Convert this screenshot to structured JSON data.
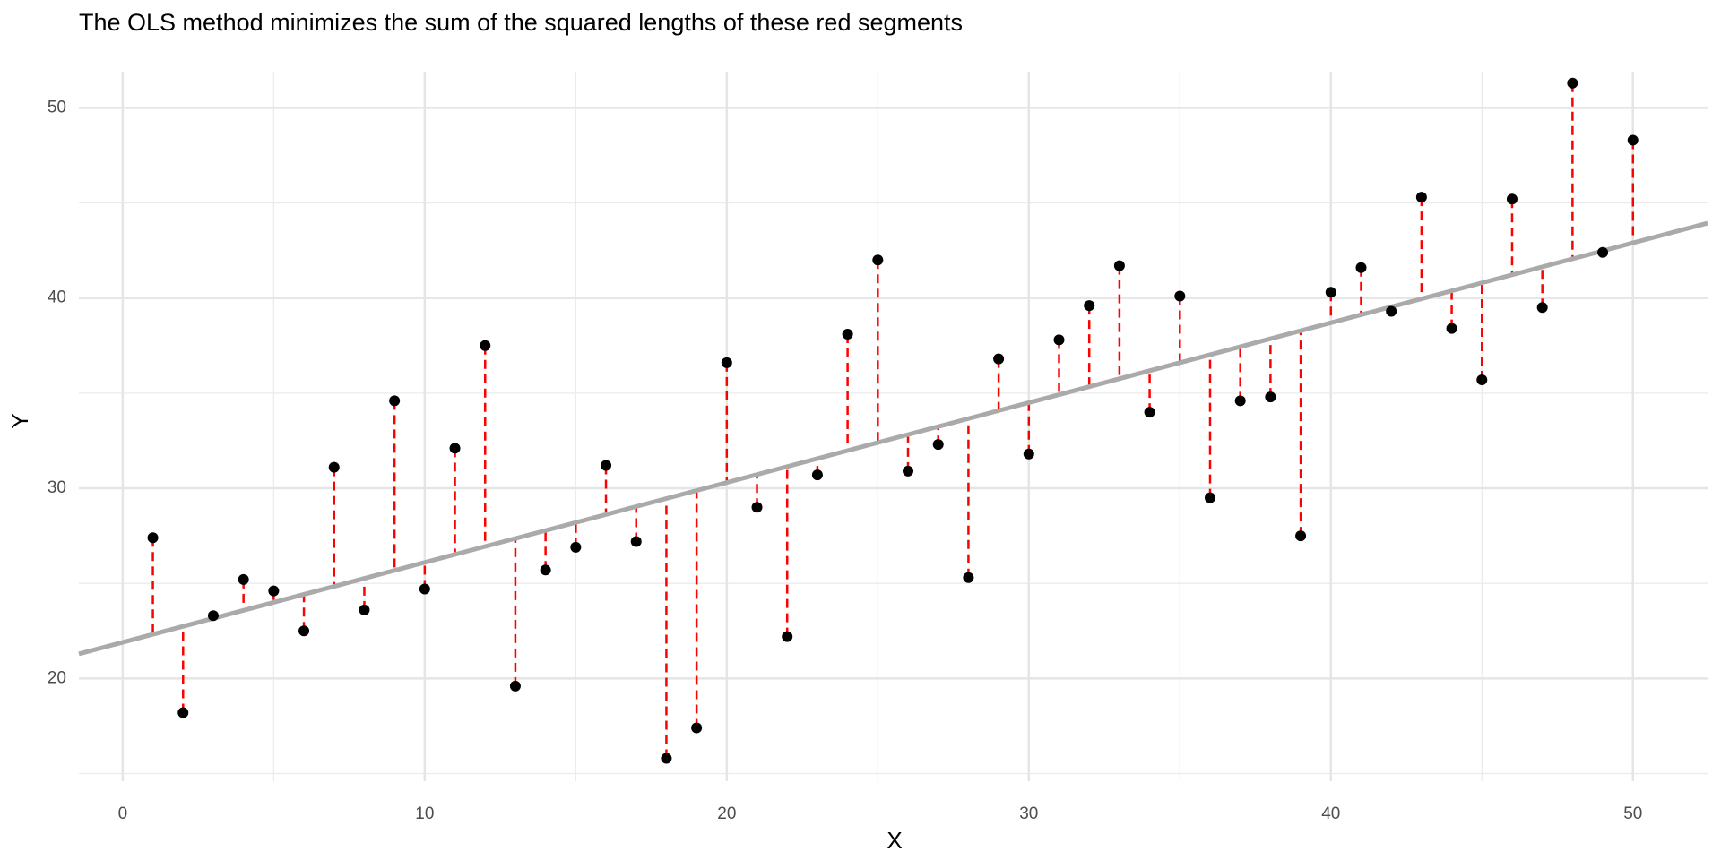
{
  "chart_data": {
    "type": "scatter",
    "title": "The OLS method minimizes the sum of the squared lengths of these red segments",
    "x_label": "X",
    "y_label": "Y",
    "x": [
      1,
      2,
      3,
      4,
      5,
      6,
      7,
      8,
      9,
      10,
      11,
      12,
      13,
      14,
      15,
      16,
      17,
      18,
      19,
      20,
      21,
      22,
      23,
      24,
      25,
      26,
      27,
      28,
      29,
      30,
      31,
      32,
      33,
      34,
      35,
      36,
      37,
      38,
      39,
      40,
      41,
      42,
      43,
      44,
      45,
      46,
      47,
      48,
      49,
      50
    ],
    "y": [
      27.4,
      18.2,
      23.3,
      25.2,
      24.6,
      22.5,
      31.1,
      23.6,
      34.6,
      24.7,
      32.1,
      37.5,
      19.6,
      25.7,
      26.9,
      31.2,
      27.2,
      15.8,
      17.4,
      36.6,
      29.0,
      22.2,
      30.7,
      38.1,
      42.0,
      30.9,
      32.3,
      25.3,
      36.8,
      31.8,
      37.8,
      39.6,
      41.7,
      34.0,
      40.1,
      29.5,
      34.6,
      34.8,
      27.5,
      40.3,
      41.6,
      39.3,
      45.3,
      38.4,
      35.7,
      45.2,
      39.5,
      51.3,
      42.4,
      48.3
    ],
    "point_color": "#000000",
    "fit": {
      "intercept": 21.9,
      "slope": 0.42,
      "color": "#aaaaaa"
    },
    "residual_color": "#ff0000",
    "xlim": [
      -1.45,
      52.47
    ],
    "ylim": [
      14.6,
      51.9
    ],
    "xticks": [
      0,
      10,
      20,
      30,
      40,
      50
    ],
    "yticks": [
      20,
      30,
      40,
      50
    ],
    "x_minor_ticks": [
      5,
      15,
      25,
      35,
      45
    ],
    "y_minor_ticks": [
      15,
      25,
      35,
      45
    ],
    "grid": true
  }
}
